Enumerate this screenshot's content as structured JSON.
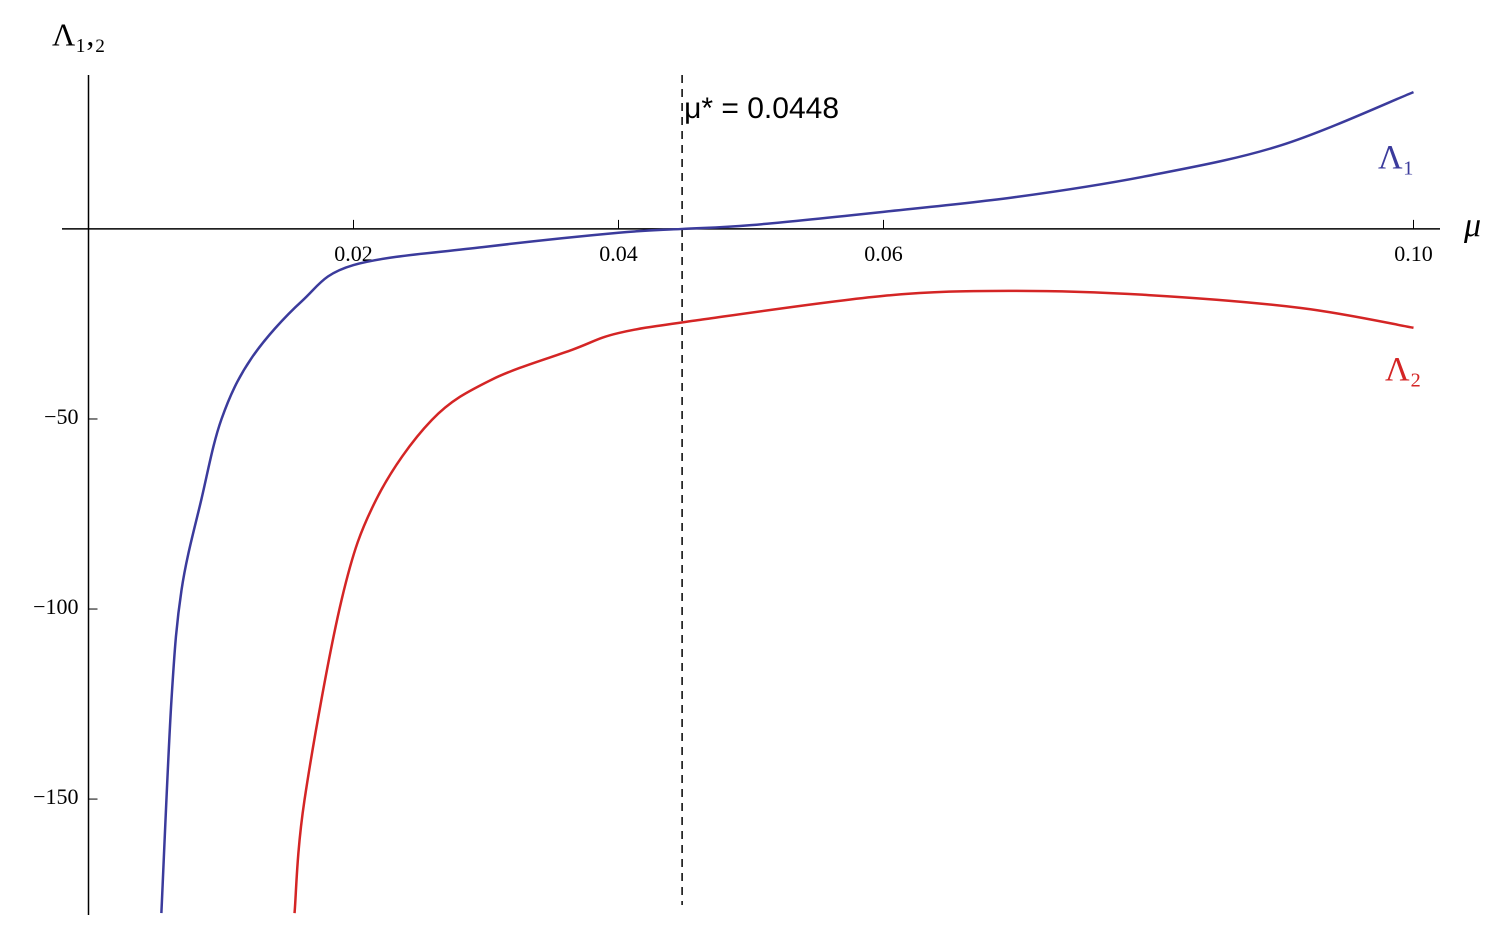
{
  "chart_data": {
    "type": "line",
    "y_label": "Λ₁,₂",
    "x_label": "μ",
    "annotation": {
      "text": "μ* = 0.0448",
      "x": 0.0448
    },
    "xlim": [
      -0.002,
      0.102
    ],
    "ylim": [
      -180.5,
      40.5
    ],
    "xticks": [
      0.02,
      0.04,
      0.06,
      {
        "value": 0.1,
        "label": "0.10"
      }
    ],
    "yticks": [
      {
        "value": -50,
        "label": "−50"
      },
      {
        "value": -100,
        "label": "−100"
      },
      {
        "value": -150,
        "label": "−150"
      }
    ],
    "series": [
      {
        "name": "Λ₁",
        "color": "#3b3b9c",
        "x": [
          0.0055,
          0.00626,
          0.00702,
          0.00853,
          0.01004,
          0.0123,
          0.0161,
          0.02,
          0.03,
          0.04,
          0.0448,
          0.05,
          0.06,
          0.07,
          0.08,
          0.09,
          0.1
        ],
        "values": [
          -180,
          -124,
          -95,
          -71,
          -50,
          -34,
          -19,
          -9.5,
          -4.7,
          -1,
          0,
          1,
          4.5,
          8.4,
          14,
          22,
          36
        ]
      },
      {
        "name": "Λ₂",
        "color": "#d42525",
        "x": [
          0.01555,
          0.0163,
          0.0191,
          0.0217,
          0.0259,
          0.0304,
          0.0365,
          0.04,
          0.046,
          0.06,
          0.0697,
          0.08,
          0.0915,
          0.1
        ],
        "values": [
          -180,
          -150.3,
          -97.6,
          -71.3,
          -50.3,
          -39.7,
          -31.8,
          -27.4,
          -24,
          -17.6,
          -16.3,
          -17.4,
          -20.8,
          -26
        ]
      }
    ]
  }
}
